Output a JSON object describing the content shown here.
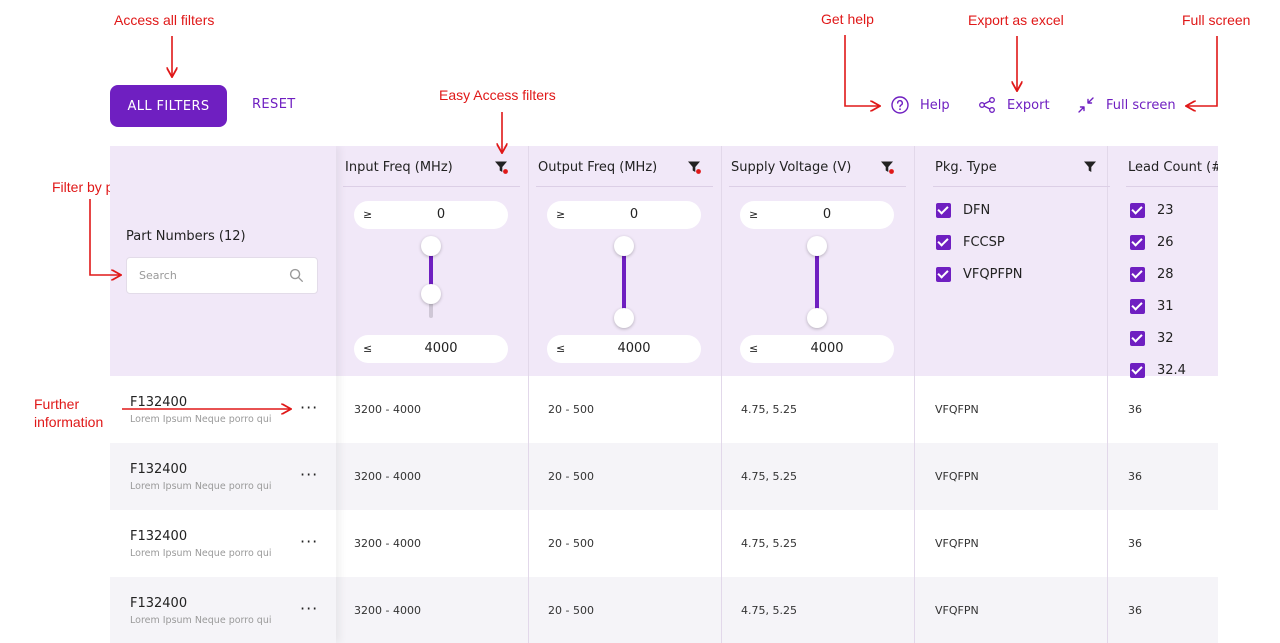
{
  "annotations": {
    "access_all_filters": "Access all filters",
    "easy_access_filters": "Easy Access  filters",
    "get_help": "Get help",
    "export_as_excel": "Export as excel",
    "full_screen": "Full screen",
    "filter_by_part": "Filter by part",
    "further_information_1": "Further",
    "further_information_2": "information"
  },
  "toolbar": {
    "all_filters_label": "ALL FILTERS",
    "reset_label": "RESET",
    "help_label": "Help",
    "export_label": "Export",
    "fullscreen_label": "Full screen"
  },
  "part_column": {
    "title": "Part Numbers (12)",
    "search_placeholder": "Search"
  },
  "columns": [
    {
      "label": "Input Freq (MHz)",
      "filter_active": true,
      "min_op": "≥",
      "min": "0",
      "max_op": "≤",
      "max": "4000"
    },
    {
      "label": "Output Freq (MHz)",
      "filter_active": true,
      "min_op": "≥",
      "min": "0",
      "max_op": "≤",
      "max": "4000"
    },
    {
      "label": "Supply Voltage (V)",
      "filter_active": true,
      "min_op": "≥",
      "min": "0",
      "max_op": "≤",
      "max": "4000"
    },
    {
      "label": "Pkg. Type",
      "filter_active": false,
      "options": [
        "DFN",
        "FCCSP",
        "VFQPFPN"
      ]
    },
    {
      "label": "Lead Count (#)",
      "filter_active": false,
      "options": [
        "23",
        "26",
        "28",
        "31",
        "32",
        "32.4"
      ]
    }
  ],
  "rows": [
    {
      "part": "F132400",
      "desc": "Lorem Ipsum Neque porro  qui",
      "more": "···",
      "input": "3200 - 4000",
      "output": "20 - 500",
      "voltage": "4.75, 5.25",
      "pkg": "VFQFPN",
      "lead": "36"
    },
    {
      "part": "F132400",
      "desc": "Lorem Ipsum Neque porro  qui",
      "more": "···",
      "input": "3200 - 4000",
      "output": "20 - 500",
      "voltage": "4.75, 5.25",
      "pkg": "VFQFPN",
      "lead": "36"
    },
    {
      "part": "F132400",
      "desc": "Lorem Ipsum Neque porro  qui",
      "more": "···",
      "input": "3200 - 4000",
      "output": "20 - 500",
      "voltage": "4.75, 5.25",
      "pkg": "VFQFPN",
      "lead": "36"
    },
    {
      "part": "F132400",
      "desc": "Lorem Ipsum Neque porro  qui",
      "more": "···",
      "input": "3200 - 4000",
      "output": "20 - 500",
      "voltage": "4.75, 5.25",
      "pkg": "VFQFPN",
      "lead": "36"
    }
  ],
  "colors": {
    "accent": "#6f1fc1",
    "annotation": "#e01818",
    "header_bg": "#f1e8f8",
    "row_alt": "#f5f4f8"
  },
  "icons": {
    "help": "help-circle-icon",
    "export": "share-nodes-icon",
    "fullscreen": "collapse-arrows-icon",
    "filter": "funnel-icon",
    "search": "search-icon"
  }
}
